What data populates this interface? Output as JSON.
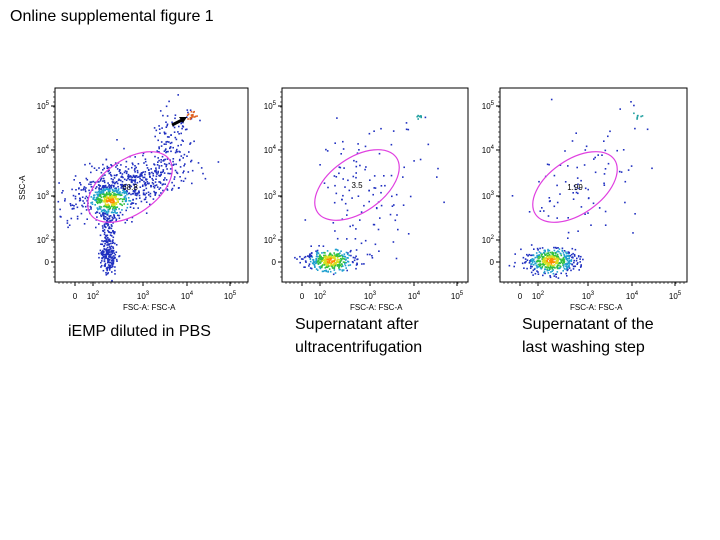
{
  "title": "Online supplemental figure 1",
  "chart_data": [
    {
      "type": "scatter",
      "subtype": "flow cytometry density plot",
      "xlabel": "FSC-A: FSC-A",
      "ylabel": "SSC-A",
      "x_ticks": [
        "0",
        "10^2",
        "10^3",
        "10^4",
        "10^5"
      ],
      "y_ticks": [
        "0",
        "10^2",
        "10^3",
        "10^4",
        "10^5"
      ],
      "x_scale": "biexponential",
      "y_scale": "biexponential",
      "gate": {
        "shape": "ellipse",
        "color": "#e040e0",
        "label": "68.8"
      },
      "annotation": "arrow pointing to bead population near FSC 10^4, SSC 10^5",
      "caption": "iEMP diluted in PBS"
    },
    {
      "type": "scatter",
      "subtype": "flow cytometry density plot",
      "xlabel": "FSC-A: FSC-A",
      "ylabel": "",
      "x_ticks": [
        "0",
        "10^2",
        "10^3",
        "10^4",
        "10^5"
      ],
      "y_ticks": [
        "0",
        "10^2",
        "10^3",
        "10^4",
        "10^5"
      ],
      "x_scale": "biexponential",
      "y_scale": "biexponential",
      "gate": {
        "shape": "ellipse",
        "color": "#e040e0",
        "label": "3.5"
      },
      "caption": [
        "Supernatant after",
        "ultracentrifugation"
      ]
    },
    {
      "type": "scatter",
      "subtype": "flow cytometry density plot",
      "xlabel": "FSC-A: FSC-A",
      "ylabel": "",
      "x_ticks": [
        "0",
        "10^2",
        "10^3",
        "10^4",
        "10^5"
      ],
      "y_ticks": [
        "0",
        "10^2",
        "10^3",
        "10^4",
        "10^5"
      ],
      "x_scale": "biexponential",
      "y_scale": "biexponential",
      "gate": {
        "shape": "ellipse",
        "color": "#e040e0",
        "label": "1.99"
      },
      "caption": [
        "Supernatant of the",
        "last washing step"
      ]
    }
  ]
}
